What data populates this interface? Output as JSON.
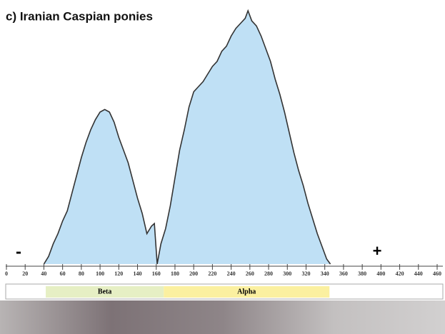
{
  "chart_data": {
    "type": "area",
    "title": "c) Iranian Caspian ponies",
    "x": [
      40,
      45,
      50,
      55,
      60,
      65,
      70,
      75,
      80,
      85,
      90,
      95,
      100,
      105,
      110,
      115,
      120,
      125,
      130,
      135,
      140,
      145,
      150,
      155,
      158,
      161,
      165,
      170,
      175,
      180,
      185,
      190,
      195,
      200,
      205,
      210,
      215,
      220,
      225,
      230,
      235,
      240,
      245,
      250,
      255,
      258,
      262,
      267,
      272,
      277,
      282,
      287,
      292,
      297,
      302,
      307,
      312,
      317,
      322,
      327,
      332,
      337,
      342,
      346
    ],
    "values": [
      0,
      3,
      8,
      12,
      17,
      21,
      28,
      35,
      42,
      48,
      53,
      57,
      60,
      61,
      60,
      56,
      50,
      45,
      40,
      33,
      26,
      20,
      12,
      15,
      16,
      0,
      8,
      14,
      23,
      34,
      45,
      53,
      62,
      68,
      70,
      72,
      75,
      78,
      80,
      84,
      86,
      90,
      93,
      95,
      97,
      100,
      96,
      94,
      90,
      85,
      80,
      73,
      67,
      60,
      52,
      44,
      37,
      31,
      24,
      18,
      12,
      7,
      2,
      0
    ],
    "color": "#bfe0f5",
    "xlim": [
      0,
      460
    ],
    "ylim": [
      0,
      100
    ],
    "xticks": [
      0,
      20,
      40,
      60,
      80,
      100,
      120,
      140,
      160,
      180,
      200,
      220,
      240,
      260,
      280,
      300,
      320,
      340,
      360,
      380,
      400,
      420,
      440,
      460
    ],
    "annotations": [
      "-",
      "+"
    ],
    "bands": [
      {
        "name": "Beta",
        "color": "#e6efc4",
        "range": [
          42,
          168
        ]
      },
      {
        "name": "Alpha",
        "color": "#fbf0a0",
        "range": [
          168,
          345
        ]
      }
    ]
  }
}
